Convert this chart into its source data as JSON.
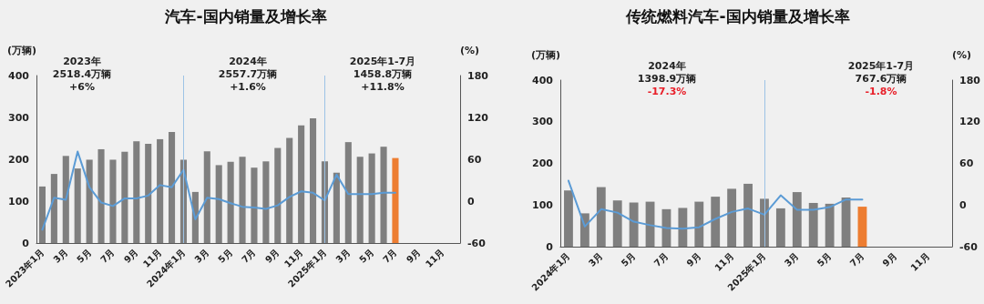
{
  "chart_data": [
    {
      "type": "bar",
      "title": "汽车-国内销量及增长率",
      "ylabel": "(万辆)",
      "y2label": "(%)",
      "categories": [
        "2023年1月",
        null,
        "3月",
        null,
        "5月",
        null,
        "7月",
        null,
        "9月",
        null,
        "11月",
        null,
        "2024年1月",
        null,
        "3月",
        null,
        "5月",
        null,
        "7月",
        null,
        "9月",
        null,
        "11月",
        null,
        "2025年1月",
        null,
        "3月",
        null,
        "5月",
        null,
        "7月",
        null,
        "9月",
        null,
        "11月",
        null
      ],
      "series": [
        {
          "color": "#7f7f7f",
          "colors": [
            "#7f7f7f",
            "#7f7f7f",
            "#7f7f7f",
            "#7f7f7f",
            "#7f7f7f",
            "#7f7f7f",
            "#7f7f7f",
            "#7f7f7f",
            "#7f7f7f",
            "#7f7f7f",
            "#7f7f7f",
            "#7f7f7f",
            "#7f7f7f",
            "#7f7f7f",
            "#7f7f7f",
            "#7f7f7f",
            "#7f7f7f",
            "#7f7f7f",
            "#7f7f7f",
            "#7f7f7f",
            "#7f7f7f",
            "#7f7f7f",
            "#7f7f7f",
            "#7f7f7f",
            "#7f7f7f",
            "#7f7f7f",
            "#7f7f7f",
            "#7f7f7f",
            "#7f7f7f",
            "#7f7f7f",
            "#ed7d31",
            null,
            null,
            null,
            null,
            null
          ],
          "values": [
            135,
            165,
            208,
            178,
            199,
            224,
            199,
            218,
            243,
            237,
            248,
            265,
            199,
            122,
            219,
            186,
            194,
            206,
            180,
            195,
            227,
            251,
            281,
            298,
            195,
            168,
            241,
            206,
            214,
            230,
            203,
            null,
            null,
            null,
            null,
            null
          ]
        },
        {
          "type": "line",
          "axis": "y2",
          "color": "#5b9bd5",
          "values": [
            -41,
            5,
            2,
            71,
            20,
            -2,
            -7,
            4,
            4,
            8,
            23,
            20,
            45,
            -26,
            5,
            3,
            -3,
            -8,
            -9,
            -11,
            -6,
            6,
            14,
            12,
            1,
            38,
            10,
            10,
            10,
            12,
            12,
            null,
            null,
            null,
            null,
            null
          ]
        }
      ],
      "ylim": [
        0,
        400
      ],
      "yticks": [
        0,
        100,
        200,
        300,
        400
      ],
      "y2lim": [
        -60,
        180
      ],
      "y2ticks": [
        -60,
        0,
        60,
        120,
        180
      ],
      "ref_lines": [
        {
          "axis": "x",
          "value": "2024年1月",
          "color": "#9dc3e6"
        },
        {
          "axis": "x",
          "value": "2025年1月",
          "color": "#9dc3e6"
        }
      ],
      "annotations": [
        "2023年",
        "2518.4万辆",
        "+6%",
        "2024年",
        "2557.7万辆",
        "+1.6%",
        "2025年1-7月",
        "1458.8万辆",
        "+11.8%"
      ],
      "grid": false,
      "marker": "none",
      "line_style": "solid"
    },
    {
      "type": "bar",
      "title": "传统燃料汽车-国内销量及增长率",
      "ylabel": "(万辆)",
      "y2label": "(%)",
      "categories": [
        "2024年1月",
        null,
        "3月",
        null,
        "5月",
        null,
        "7月",
        null,
        "9月",
        null,
        "11月",
        null,
        "2025年1月",
        null,
        "3月",
        null,
        "5月",
        null,
        "7月",
        null,
        "9月",
        null,
        "11月",
        null
      ],
      "series": [
        {
          "color": "#7f7f7f",
          "colors": [
            "#7f7f7f",
            "#7f7f7f",
            "#7f7f7f",
            "#7f7f7f",
            "#7f7f7f",
            "#7f7f7f",
            "#7f7f7f",
            "#7f7f7f",
            "#7f7f7f",
            "#7f7f7f",
            "#7f7f7f",
            "#7f7f7f",
            "#7f7f7f",
            "#7f7f7f",
            "#7f7f7f",
            "#7f7f7f",
            "#7f7f7f",
            "#7f7f7f",
            "#ed7d31",
            null,
            null,
            null,
            null,
            null
          ],
          "values": [
            135,
            80,
            143,
            111,
            106,
            108,
            90,
            93,
            108,
            120,
            139,
            151,
            115,
            92,
            131,
            105,
            103,
            118,
            96,
            null,
            null,
            null,
            null,
            null
          ]
        },
        {
          "type": "line",
          "axis": "y2",
          "color": "#5b9bd5",
          "values": [
            35,
            -31,
            -6,
            -11,
            -24,
            -29,
            -33,
            -34,
            -32,
            -20,
            -10,
            -5,
            -14,
            14,
            -7,
            -7,
            -3,
            8,
            8,
            null,
            null,
            null,
            null,
            null
          ]
        }
      ],
      "ylim": [
        0,
        400
      ],
      "yticks": [
        0,
        100,
        200,
        300,
        400
      ],
      "y2lim": [
        -60,
        180
      ],
      "y2ticks": [
        -60,
        0,
        60,
        120,
        180
      ],
      "ref_lines": [
        {
          "axis": "x",
          "value": "2025年1月",
          "color": "#9dc3e6"
        }
      ],
      "annotations": [
        "2024年",
        "1398.9万辆",
        "-17.3%",
        "2025年1-7月",
        "767.6万辆",
        "-1.8%"
      ],
      "grid": false,
      "marker": "none",
      "line_style": "solid"
    }
  ]
}
